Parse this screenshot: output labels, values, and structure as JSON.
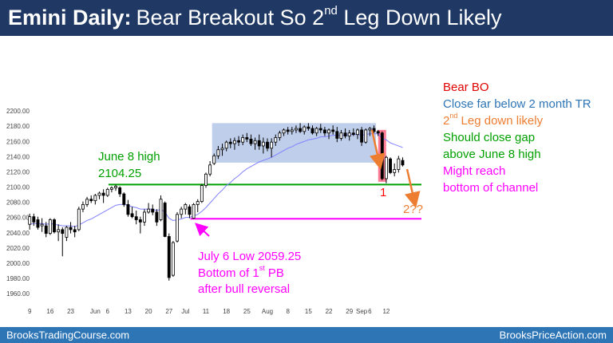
{
  "chart_data": {
    "type": "candlestick",
    "title": {
      "bold": "Emini Daily:",
      "text": "Bear Breakout So 2",
      "sup": "nd",
      "rest": " Leg Down Likely"
    },
    "x": [
      0,
      1,
      2,
      3,
      4,
      5,
      6,
      7,
      8,
      9,
      10,
      11,
      12,
      13,
      14,
      15,
      16,
      17,
      18,
      19,
      20,
      21,
      22,
      23,
      24,
      25,
      26,
      27,
      28,
      29,
      30,
      31,
      32,
      33,
      34,
      35,
      36,
      37,
      38,
      39,
      40,
      41,
      42,
      43,
      44,
      45,
      46,
      47,
      48,
      49,
      50,
      51,
      52,
      53,
      54,
      55,
      56,
      57,
      58,
      59,
      60,
      61,
      62,
      63,
      64,
      65,
      66,
      67,
      68,
      69,
      70,
      71,
      72,
      73,
      74,
      75,
      76,
      77,
      78,
      79,
      80,
      81,
      82,
      83,
      84,
      85,
      86,
      87,
      88,
      89,
      90,
      91
    ],
    "open": [
      2052,
      2062,
      2058,
      2050,
      2050,
      2040,
      2058,
      2042,
      2045,
      2035,
      2048,
      2045,
      2045,
      2072,
      2078,
      2085,
      2083,
      2090,
      2093,
      2090,
      2098,
      2100,
      2100,
      2092,
      2078,
      2066,
      2062,
      2058,
      2055,
      2068,
      2072,
      2068,
      2058,
      2080,
      2036,
      1985,
      2030,
      2065,
      2072,
      2075,
      2060,
      2078,
      2082,
      2103,
      2118,
      2132,
      2142,
      2150,
      2152,
      2160,
      2158,
      2162,
      2160,
      2166,
      2164,
      2158,
      2162,
      2155,
      2160,
      2152,
      2160,
      2166,
      2172,
      2176,
      2174,
      2176,
      2178,
      2174,
      2180,
      2178,
      2172,
      2178,
      2176,
      2172,
      2176,
      2174,
      2165,
      2172,
      2168,
      2172,
      2170,
      2176,
      2160,
      2176,
      2178,
      2174,
      2172,
      2112,
      2138,
      2120,
      2124,
      2136
    ],
    "high": [
      2066,
      2066,
      2062,
      2060,
      2055,
      2060,
      2060,
      2052,
      2048,
      2050,
      2055,
      2050,
      2075,
      2082,
      2088,
      2090,
      2092,
      2095,
      2098,
      2100,
      2102,
      2104.25,
      2102,
      2094,
      2084,
      2075,
      2070,
      2062,
      2072,
      2080,
      2078,
      2072,
      2090,
      2082,
      2040,
      2030,
      2068,
      2075,
      2080,
      2078,
      2080,
      2085,
      2105,
      2120,
      2135,
      2145,
      2155,
      2158,
      2162,
      2165,
      2166,
      2168,
      2170,
      2172,
      2170,
      2166,
      2170,
      2166,
      2165,
      2165,
      2170,
      2175,
      2178,
      2180,
      2180,
      2182,
      2185,
      2182,
      2185,
      2182,
      2180,
      2184,
      2180,
      2178,
      2182,
      2180,
      2176,
      2178,
      2176,
      2178,
      2178,
      2180,
      2178,
      2180,
      2182,
      2176,
      2174,
      2142,
      2140,
      2132,
      2142,
      2140
    ],
    "low": [
      2045,
      2050,
      2045,
      2042,
      2035,
      2038,
      2040,
      2030,
      2010,
      2030,
      2040,
      2035,
      2043,
      2068,
      2075,
      2080,
      2078,
      2085,
      2080,
      2088,
      2094,
      2096,
      2088,
      2075,
      2062,
      2060,
      2052,
      2040,
      2050,
      2066,
      2064,
      2050,
      2056,
      2035,
      1978,
      1983,
      2028,
      2060,
      2065,
      2060,
      2059.25,
      2068,
      2080,
      2100,
      2115,
      2130,
      2138,
      2142,
      2148,
      2152,
      2150,
      2155,
      2156,
      2160,
      2155,
      2150,
      2150,
      2145,
      2148,
      2140,
      2155,
      2162,
      2168,
      2170,
      2170,
      2172,
      2172,
      2170,
      2175,
      2170,
      2168,
      2172,
      2168,
      2164,
      2170,
      2160,
      2162,
      2165,
      2162,
      2168,
      2164,
      2155,
      2158,
      2168,
      2172,
      2168,
      2110,
      2106,
      2118,
      2115,
      2120,
      2128
    ],
    "close": [
      2062,
      2055,
      2048,
      2052,
      2040,
      2058,
      2042,
      2045,
      2040,
      2048,
      2045,
      2042,
      2072,
      2078,
      2085,
      2083,
      2090,
      2093,
      2090,
      2098,
      2100,
      2102,
      2092,
      2078,
      2065,
      2062,
      2058,
      2055,
      2068,
      2072,
      2068,
      2055,
      2085,
      2036,
      1982,
      2028,
      2065,
      2072,
      2078,
      2065,
      2078,
      2082,
      2103,
      2118,
      2130,
      2142,
      2150,
      2152,
      2160,
      2158,
      2162,
      2160,
      2166,
      2164,
      2158,
      2162,
      2155,
      2160,
      2152,
      2160,
      2166,
      2172,
      2176,
      2174,
      2176,
      2178,
      2174,
      2180,
      2178,
      2172,
      2178,
      2176,
      2172,
      2176,
      2174,
      2165,
      2172,
      2168,
      2172,
      2170,
      2176,
      2160,
      2176,
      2178,
      2174,
      2172,
      2112,
      2140,
      2120,
      2124,
      2138,
      2130
    ],
    "ema": [
      2052,
      2053,
      2053,
      2053,
      2052,
      2053,
      2052,
      2051,
      2050,
      2050,
      2050,
      2049,
      2051,
      2054,
      2057,
      2059,
      2062,
      2065,
      2068,
      2071,
      2074,
      2077,
      2078,
      2078,
      2077,
      2075,
      2074,
      2072,
      2072,
      2072,
      2072,
      2070,
      2072,
      2068,
      2060,
      2057,
      2058,
      2059,
      2061,
      2061,
      2063,
      2065,
      2069,
      2074,
      2080,
      2086,
      2092,
      2097,
      2103,
      2107,
      2112,
      2116,
      2121,
      2125,
      2128,
      2131,
      2134,
      2136,
      2138,
      2140,
      2143,
      2146,
      2149,
      2152,
      2154,
      2157,
      2159,
      2161,
      2163,
      2164,
      2165,
      2167,
      2167,
      2168,
      2169,
      2169,
      2169,
      2169,
      2170,
      2170,
      2170,
      2169,
      2170,
      2171,
      2171,
      2171,
      2165,
      2163,
      2159,
      2157,
      2155,
      2153
    ],
    "ema_color": "#8080ff",
    "xlim": [
      -1.4,
      95
    ],
    "xticks": [
      {
        "value": 0,
        "label": "9"
      },
      {
        "value": 5,
        "label": "16"
      },
      {
        "value": 10,
        "label": "23"
      },
      {
        "value": 16,
        "label": "Jun"
      },
      {
        "value": 19,
        "label": "6"
      },
      {
        "value": 24,
        "label": "13"
      },
      {
        "value": 29,
        "label": "20"
      },
      {
        "value": 34,
        "label": "27"
      },
      {
        "value": 38,
        "label": "Jul"
      },
      {
        "value": 43,
        "label": "11"
      },
      {
        "value": 48,
        "label": "18"
      },
      {
        "value": 53,
        "label": "25"
      },
      {
        "value": 58,
        "label": "Aug"
      },
      {
        "value": 63,
        "label": "8"
      },
      {
        "value": 68,
        "label": "15"
      },
      {
        "value": 73,
        "label": "22"
      },
      {
        "value": 78,
        "label": "29"
      },
      {
        "value": 81,
        "label": "Sep"
      },
      {
        "value": 83,
        "label": "6"
      },
      {
        "value": 87,
        "label": "12"
      }
    ],
    "ylim": [
      1950,
      2210
    ],
    "yticks": [
      {
        "value": 1960,
        "label": "1960.00"
      },
      {
        "value": 1980,
        "label": "1980.00"
      },
      {
        "value": 2000,
        "label": "2000.00"
      },
      {
        "value": 2020,
        "label": "2020.00"
      },
      {
        "value": 2040,
        "label": "2040.00"
      },
      {
        "value": 2060,
        "label": "2060.00"
      },
      {
        "value": 2080,
        "label": "2080.00"
      },
      {
        "value": 2100,
        "label": "2100.00"
      },
      {
        "value": 2120,
        "label": "2120.00"
      },
      {
        "value": 2140,
        "label": "2140.00"
      },
      {
        "value": 2160,
        "label": "2160.00"
      },
      {
        "value": 2180,
        "label": "2180.00"
      },
      {
        "value": 2200,
        "label": "2200.00"
      }
    ],
    "range_box": {
      "x": [
        44.5,
        84.5
      ],
      "y": [
        2133,
        2185
      ],
      "color": "#b4c7e7"
    },
    "levels": [
      {
        "value": 2104.25,
        "from": 20,
        "color": "#00a000"
      },
      {
        "value": 2059.25,
        "from": 40,
        "color": "#ff00ff"
      }
    ],
    "annotations": [
      {
        "text": "June 8 high",
        "color": "#00a000"
      },
      {
        "text": "2104.25",
        "color": "#00a000"
      },
      {
        "text": "July 6 Low 2059.25",
        "color": "#ff00ff"
      },
      {
        "text": "Bottom of 1",
        "sup": "st",
        "rest": " PB",
        "color": "#ff00ff"
      },
      {
        "text": "after bull reversal",
        "color": "#ff00ff"
      },
      {
        "text": "1",
        "color": "#ff0000"
      },
      {
        "text": "2??",
        "color": "#ed7d31"
      }
    ],
    "notes": [
      {
        "text": "Bear BO",
        "color": "#e00000"
      },
      {
        "text": "Close far below 2 month TR",
        "color": "#2e75b6"
      },
      {
        "text": "2",
        "sup": "nd",
        "rest": " Leg down likely",
        "color": "#ed7d31"
      },
      {
        "text": "Should close gap",
        "color": "#00a000"
      },
      {
        "text": "above June 8 high",
        "color": "#00a000"
      },
      {
        "text": "Might reach",
        "color": "#ff00ff"
      },
      {
        "text": "bottom of channel",
        "color": "#ff00ff"
      }
    ],
    "footer_left": "BrooksTradingCourse.com",
    "footer_right": "BrooksPriceAction.com"
  }
}
